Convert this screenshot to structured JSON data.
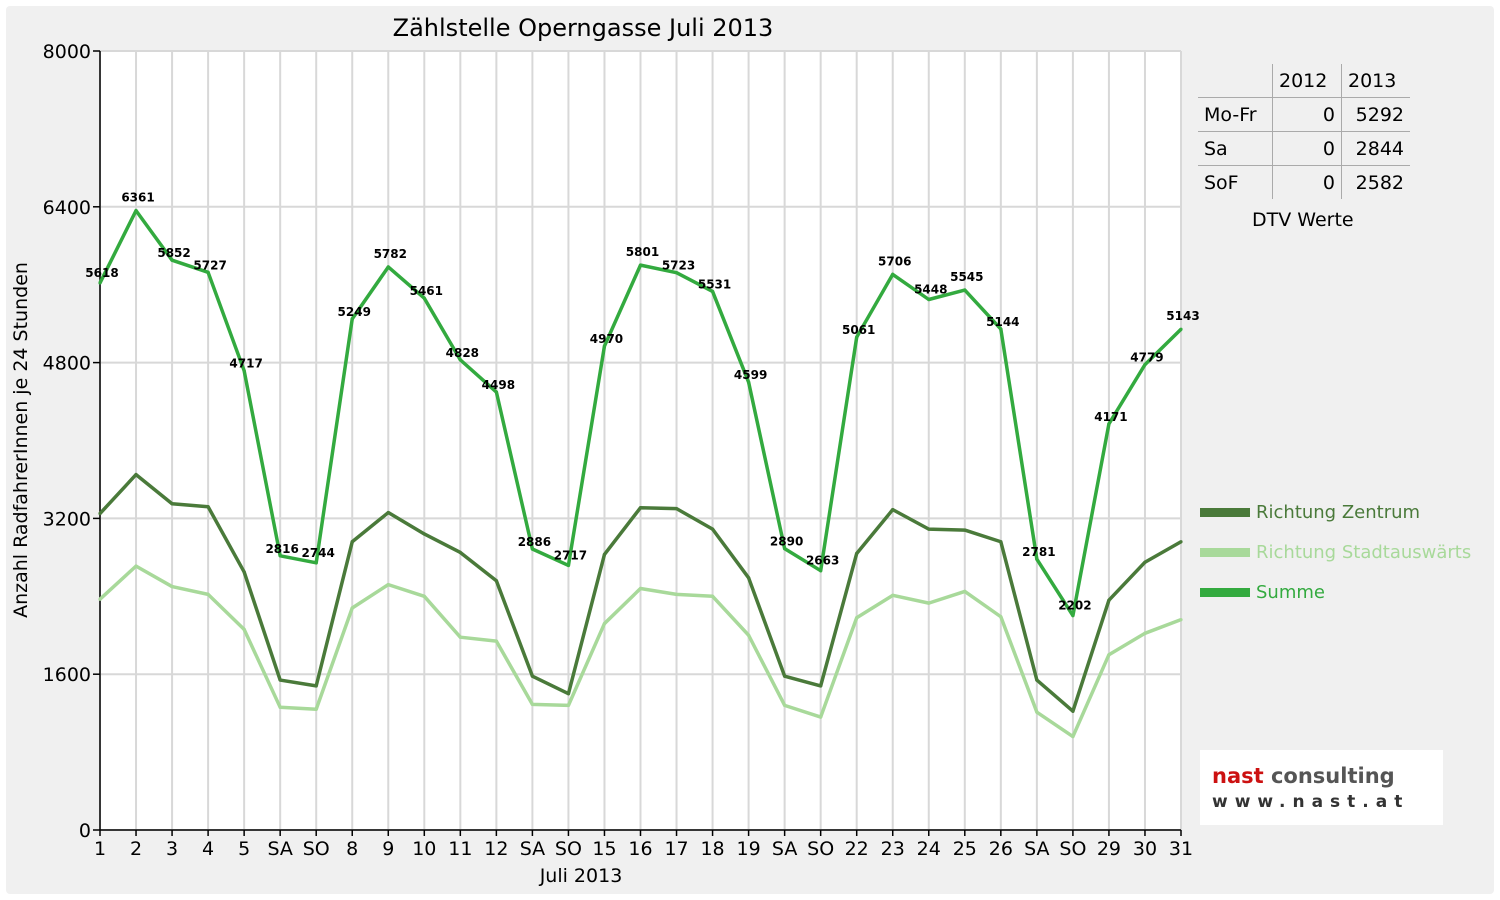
{
  "chart_data": {
    "type": "line",
    "title": "Zählstelle Operngasse Juli 2013",
    "xlabel": "Juli 2013",
    "ylabel": "Anzahl RadfahrerInnen je 24 Stunden",
    "ylim": [
      0,
      8000
    ],
    "yticks": [
      0,
      1600,
      3200,
      4800,
      6400,
      8000
    ],
    "grid": true,
    "legend_position": "right",
    "categories": [
      "1",
      "2",
      "3",
      "4",
      "5",
      "SA",
      "SO",
      "8",
      "9",
      "10",
      "11",
      "12",
      "SA",
      "SO",
      "15",
      "16",
      "17",
      "18",
      "19",
      "SA",
      "SO",
      "22",
      "23",
      "24",
      "25",
      "26",
      "SA",
      "SO",
      "29",
      "30",
      "31"
    ],
    "sunday_color": "#e00000",
    "series": [
      {
        "name": "Richtung Zentrum",
        "color": "#4a7a3a",
        "values": [
          3250,
          3650,
          3350,
          3320,
          2650,
          1540,
          1480,
          2960,
          3260,
          3040,
          2850,
          2560,
          1580,
          1400,
          2830,
          3310,
          3300,
          3090,
          2590,
          1580,
          1480,
          2840,
          3290,
          3090,
          3080,
          2960,
          1540,
          1220,
          2360,
          2750,
          2960
        ]
      },
      {
        "name": "Richtung Stadtauswärts",
        "color": "#a8d99a",
        "values": [
          2370,
          2710,
          2500,
          2420,
          2060,
          1260,
          1240,
          2280,
          2520,
          2400,
          1980,
          1940,
          1290,
          1280,
          2120,
          2480,
          2420,
          2400,
          2000,
          1280,
          1160,
          2180,
          2410,
          2330,
          2450,
          2190,
          1210,
          960,
          1800,
          2020,
          2160
        ]
      },
      {
        "name": "Summe",
        "color": "#33aa3f",
        "values": [
          5618,
          6361,
          5852,
          5727,
          4717,
          2816,
          2744,
          5249,
          5782,
          5461,
          4828,
          4498,
          2886,
          2717,
          4970,
          5801,
          5723,
          5531,
          4599,
          2890,
          2663,
          5061,
          5706,
          5448,
          5545,
          5144,
          2781,
          2202,
          4171,
          4779,
          5143
        ]
      }
    ]
  },
  "dtv_table": {
    "columns": [
      "",
      "2012",
      "2013"
    ],
    "rows": [
      {
        "label": "Mo-Fr",
        "v2012": "0",
        "v2013": "5292"
      },
      {
        "label": "Sa",
        "v2012": "0",
        "v2013": "2844"
      },
      {
        "label": "SoF",
        "v2012": "0",
        "v2013": "2582"
      }
    ],
    "caption": "DTV Werte"
  },
  "logo": {
    "name_part1": "nast",
    "name_part2": " consulting",
    "url": "www.nast.at",
    "color1": "#cc1111",
    "color2": "#555555"
  }
}
